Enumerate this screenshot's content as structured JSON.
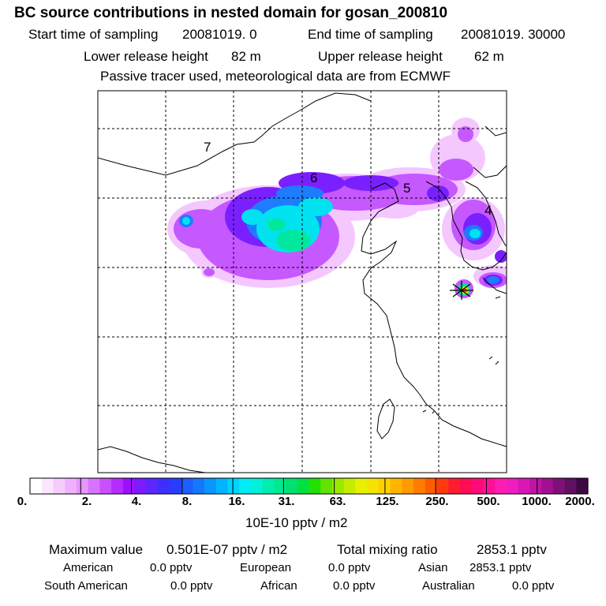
{
  "header": {
    "title": "BC  source contributions in nested domain for gosan_200810",
    "start_label": "Start time of sampling",
    "start_value": "20081019.     0",
    "end_label": "End time of sampling",
    "end_value": "20081019. 30000",
    "lower_label": "Lower release height",
    "lower_value": "82 m",
    "upper_label": "Upper release height",
    "upper_value": "62 m",
    "note": "Passive tracer used, meteorological data are from ECMWF"
  },
  "map": {
    "region_labels": [
      "7",
      "6",
      "5",
      "4"
    ],
    "receptor": "gosan"
  },
  "colorbar": {
    "tick_labels": [
      "0.",
      "2.",
      "4.",
      "8.",
      "16.",
      "31.",
      "63.",
      "125.",
      "250.",
      "500.",
      "1000.",
      "2000."
    ],
    "units": "10E-10 pptv / m2",
    "colors": [
      "#ffffff",
      "#fbe6ff",
      "#f6ccff",
      "#f0b0ff",
      "#e896ff",
      "#d873ff",
      "#c850ff",
      "#b52cff",
      "#9d10ff",
      "#7a1cff",
      "#5c28ff",
      "#3d30ff",
      "#2a3cff",
      "#1e5eff",
      "#1478ff",
      "#0a96ff",
      "#00b4ff",
      "#00d2ff",
      "#00ecf4",
      "#00f0d8",
      "#00ecb0",
      "#00e890",
      "#00e070",
      "#00e040",
      "#24e000",
      "#60e400",
      "#9ce800",
      "#c4ec00",
      "#e8f000",
      "#f4e400",
      "#ffd000",
      "#ffb400",
      "#ff9a00",
      "#ff7c00",
      "#ff5c00",
      "#ff3a10",
      "#ff1c30",
      "#ff0c54",
      "#ff0a78",
      "#ff1096",
      "#ff1cb0",
      "#f01cc0",
      "#d818b4",
      "#c014a4",
      "#a01090",
      "#801078",
      "#601060",
      "#400840"
    ]
  },
  "stats": {
    "max_label": "Maximum value",
    "max_value": "0.501E-07 pptv / m2",
    "total_label": "Total mixing ratio",
    "total_value": "2853.1 pptv",
    "regions": [
      {
        "name": "American",
        "value": "0.0 pptv"
      },
      {
        "name": "European",
        "value": "0.0 pptv"
      },
      {
        "name": "Asian",
        "value": "2853.1 pptv"
      },
      {
        "name": "South American",
        "value": "0.0 pptv"
      },
      {
        "name": "African",
        "value": "0.0 pptv"
      },
      {
        "name": "Australian",
        "value": "0.0 pptv"
      }
    ]
  }
}
